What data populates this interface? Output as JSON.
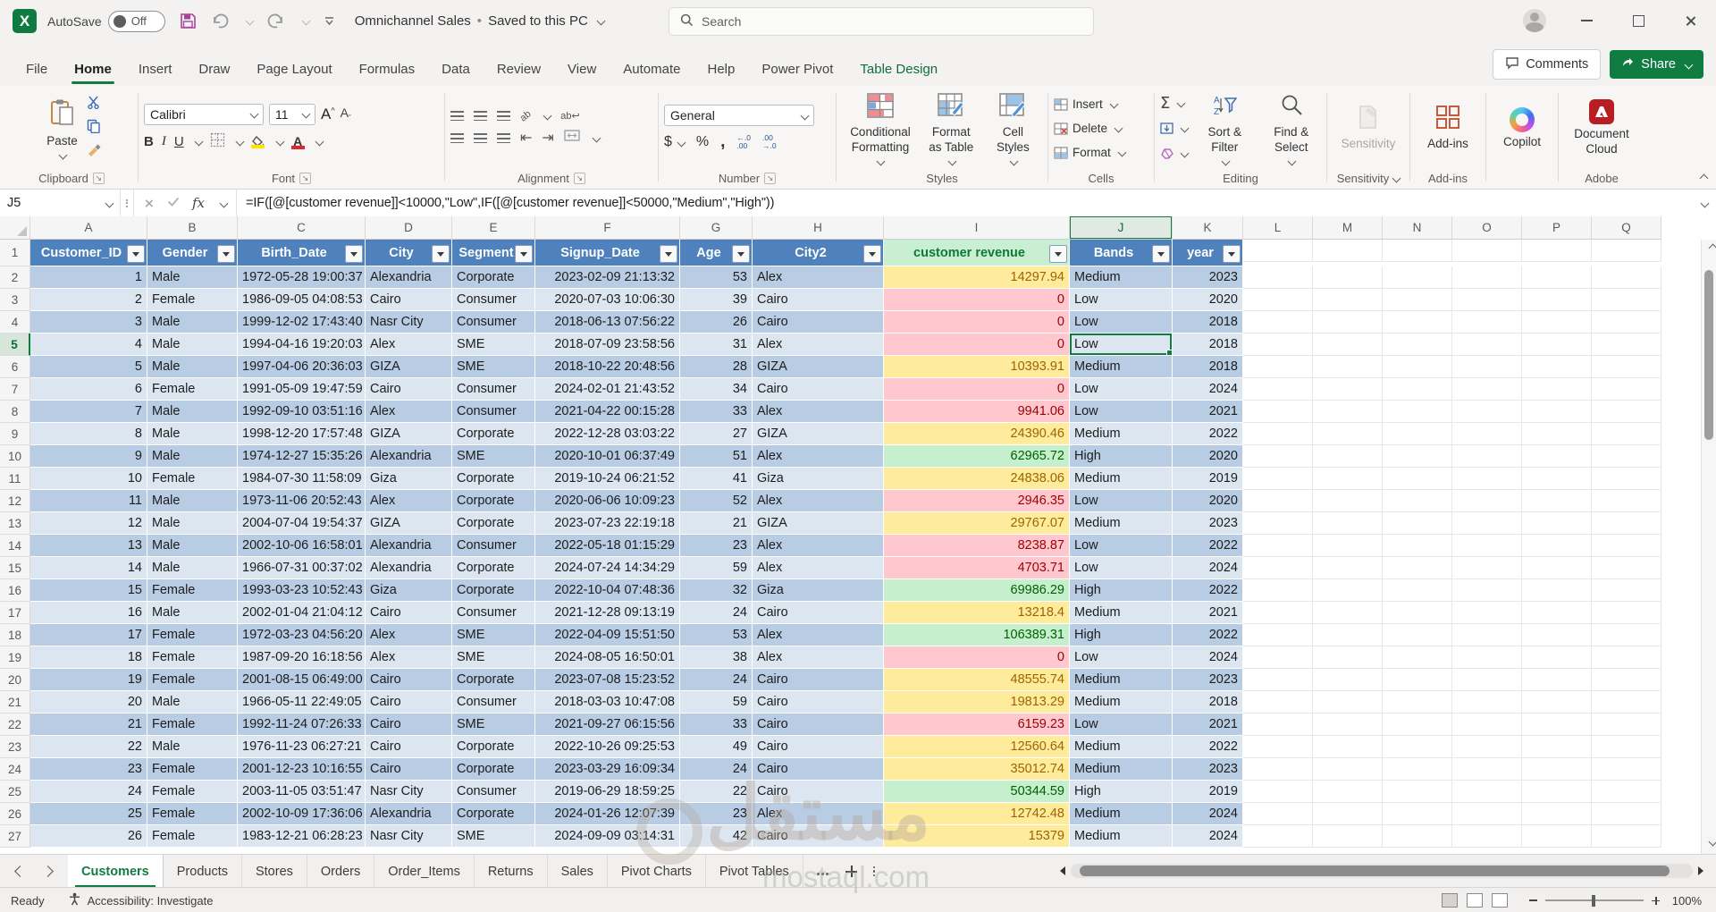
{
  "titlebar": {
    "autosave_label": "AutoSave",
    "autosave_state": "Off",
    "doc_title": "Omnichannel Sales",
    "separator": "•",
    "saved_status": "Saved to this PC",
    "search_placeholder": "Search"
  },
  "ribbon_tabs": {
    "items": [
      {
        "label": "File"
      },
      {
        "label": "Home",
        "active": true
      },
      {
        "label": "Insert"
      },
      {
        "label": "Draw"
      },
      {
        "label": "Page Layout"
      },
      {
        "label": "Formulas"
      },
      {
        "label": "Data"
      },
      {
        "label": "Review"
      },
      {
        "label": "View"
      },
      {
        "label": "Automate"
      },
      {
        "label": "Help"
      },
      {
        "label": "Power Pivot"
      },
      {
        "label": "Table Design",
        "contextual": true
      }
    ],
    "comments_label": "Comments",
    "share_label": "Share"
  },
  "ribbon": {
    "clipboard": {
      "paste": "Paste",
      "label": "Clipboard"
    },
    "font": {
      "name": "Calibri",
      "size": "11",
      "bold": "B",
      "italic": "I",
      "underline": "U",
      "a_big": "A",
      "a_color": "A",
      "label": "Font"
    },
    "alignment": {
      "wrap": "ab",
      "label": "Alignment"
    },
    "number": {
      "format": "General",
      "dollar": "$",
      "percent": "%",
      "comma": ",",
      "dec1a": "←.0",
      "dec1b": ".00",
      "dec2a": ".00",
      "dec2b": "→.0",
      "label": "Number"
    },
    "styles": {
      "cf": "Conditional Formatting",
      "fat": "Format as Table",
      "cs": "Cell Styles",
      "label": "Styles"
    },
    "cells": {
      "insert": "Insert",
      "delete": "Delete",
      "format": "Format",
      "label": "Cells"
    },
    "editing": {
      "sum": "Σ",
      "sort": "Sort & Filter",
      "find": "Find & Select",
      "label": "Editing"
    },
    "sensitivity": {
      "button": "Sensitivity",
      "label": "Sensitivity"
    },
    "addins": {
      "button": "Add-ins",
      "label": "Add-ins"
    },
    "copilot": {
      "button": "Copilot"
    },
    "adobe": {
      "button": "Document Cloud",
      "label": "Adobe"
    }
  },
  "formula_bar": {
    "name_box": "J5",
    "fx": "fx",
    "formula": "=IF([@[customer revenue]]<10000,\"Low\",IF([@[customer revenue]]<50000,\"Medium\",\"High\"))"
  },
  "grid": {
    "col_letters": [
      "A",
      "B",
      "C",
      "D",
      "E",
      "F",
      "G",
      "H",
      "I",
      "J",
      "K",
      "L",
      "M",
      "N",
      "O",
      "P",
      "Q"
    ],
    "headers": [
      "Customer_ID",
      "Gender",
      "Birth_Date",
      "City",
      "Segment",
      "Signup_Date",
      "Age",
      "City2",
      "customer revenue",
      "Bands",
      "year"
    ],
    "selected": {
      "col": "J",
      "row": 5,
      "cell": "J5",
      "value": "Low"
    },
    "colors": {
      "header_bg": "#4f81bd",
      "revenue_header_bg": "#c9efd3",
      "band_dark": "#b8cce4",
      "band_light": "#dce6f1",
      "rev_low_bg": "#ffc7ce",
      "rev_low_text": "#9c0006",
      "rev_med_bg": "#ffeb9c",
      "rev_med_text": "#9c6500",
      "rev_high_bg": "#c6efce",
      "rev_high_text": "#006100",
      "selection": "#107c41"
    },
    "rows": [
      [
        1,
        "Male",
        "1972-05-28 19:00:37",
        "Alexandria",
        "Corporate",
        "2023-02-09 21:13:32",
        53,
        "Alex",
        14297.94,
        "Medium",
        2023
      ],
      [
        2,
        "Female",
        "1986-09-05 04:08:53",
        "Cairo",
        "Consumer",
        "2020-07-03 10:06:30",
        39,
        "Cairo",
        0,
        "Low",
        2020
      ],
      [
        3,
        "Male",
        "1999-12-02 17:43:40",
        "Nasr City",
        "Consumer",
        "2018-06-13 07:56:22",
        26,
        "Cairo",
        0,
        "Low",
        2018
      ],
      [
        4,
        "Male",
        "1994-04-16 19:20:03",
        "Alex",
        "SME",
        "2018-07-09 23:58:56",
        31,
        "Alex",
        0,
        "Low",
        2018
      ],
      [
        5,
        "Male",
        "1997-04-06 20:36:03",
        "GIZA",
        "SME",
        "2018-10-22 20:48:56",
        28,
        "GIZA",
        10393.91,
        "Medium",
        2018
      ],
      [
        6,
        "Female",
        "1991-05-09 19:47:59",
        "Cairo",
        "Consumer",
        "2024-02-01 21:43:52",
        34,
        "Cairo",
        0,
        "Low",
        2024
      ],
      [
        7,
        "Male",
        "1992-09-10 03:51:16",
        "Alex",
        "Consumer",
        "2021-04-22 00:15:28",
        33,
        "Alex",
        9941.06,
        "Low",
        2021
      ],
      [
        8,
        "Male",
        "1998-12-20 17:57:48",
        "GIZA",
        "Corporate",
        "2022-12-28 03:03:22",
        27,
        "GIZA",
        24390.46,
        "Medium",
        2022
      ],
      [
        9,
        "Male",
        "1974-12-27 15:35:26",
        "Alexandria",
        "SME",
        "2020-10-01 06:37:49",
        51,
        "Alex",
        62965.72,
        "High",
        2020
      ],
      [
        10,
        "Female",
        "1984-07-30 11:58:09",
        "Giza",
        "Corporate",
        "2019-10-24 06:21:52",
        41,
        "Giza",
        24838.06,
        "Medium",
        2019
      ],
      [
        11,
        "Male",
        "1973-11-06 20:52:43",
        "Alex",
        "Corporate",
        "2020-06-06 10:09:23",
        52,
        "Alex",
        2946.35,
        "Low",
        2020
      ],
      [
        12,
        "Male",
        "2004-07-04 19:54:37",
        "GIZA",
        "Corporate",
        "2023-07-23 22:19:18",
        21,
        "GIZA",
        29767.07,
        "Medium",
        2023
      ],
      [
        13,
        "Male",
        "2002-10-06 16:58:01",
        "Alexandria",
        "Consumer",
        "2022-05-18 01:15:29",
        23,
        "Alex",
        8238.87,
        "Low",
        2022
      ],
      [
        14,
        "Male",
        "1966-07-31 00:37:02",
        "Alexandria",
        "Corporate",
        "2024-07-24 14:34:29",
        59,
        "Alex",
        4703.71,
        "Low",
        2024
      ],
      [
        15,
        "Female",
        "1993-03-23 10:52:43",
        "Giza",
        "Corporate",
        "2022-10-04 07:48:36",
        32,
        "Giza",
        69986.29,
        "High",
        2022
      ],
      [
        16,
        "Male",
        "2002-01-04 21:04:12",
        "Cairo",
        "Consumer",
        "2021-12-28 09:13:19",
        24,
        "Cairo",
        13218.4,
        "Medium",
        2021
      ],
      [
        17,
        "Female",
        "1972-03-23 04:56:20",
        "Alex",
        "SME",
        "2022-04-09 15:51:50",
        53,
        "Alex",
        106389.31,
        "High",
        2022
      ],
      [
        18,
        "Female",
        "1987-09-20 16:18:56",
        "Alex",
        "SME",
        "2024-08-05 16:50:01",
        38,
        "Alex",
        0,
        "Low",
        2024
      ],
      [
        19,
        "Female",
        "2001-08-15 06:49:00",
        "Cairo",
        "Corporate",
        "2023-07-08 15:23:52",
        24,
        "Cairo",
        48555.74,
        "Medium",
        2023
      ],
      [
        20,
        "Male",
        "1966-05-11 22:49:05",
        "Cairo",
        "Consumer",
        "2018-03-03 10:47:08",
        59,
        "Cairo",
        19813.29,
        "Medium",
        2018
      ],
      [
        21,
        "Female",
        "1992-11-24 07:26:33",
        "Cairo",
        "SME",
        "2021-09-27 06:15:56",
        33,
        "Cairo",
        6159.23,
        "Low",
        2021
      ],
      [
        22,
        "Male",
        "1976-11-23 06:27:21",
        "Cairo",
        "Corporate",
        "2022-10-26 09:25:53",
        49,
        "Cairo",
        12560.64,
        "Medium",
        2022
      ],
      [
        23,
        "Female",
        "2001-12-23 10:16:55",
        "Cairo",
        "Corporate",
        "2023-03-29 16:09:34",
        24,
        "Cairo",
        35012.74,
        "Medium",
        2023
      ],
      [
        24,
        "Female",
        "2003-11-05 03:51:47",
        "Nasr City",
        "Consumer",
        "2019-06-29 18:59:25",
        22,
        "Cairo",
        50344.59,
        "High",
        2019
      ],
      [
        25,
        "Female",
        "2002-10-09 17:36:06",
        "Alexandria",
        "Corporate",
        "2024-01-26 12:07:39",
        23,
        "Alex",
        12742.48,
        "Medium",
        2024
      ],
      [
        26,
        "Female",
        "1983-12-21 06:28:23",
        "Nasr City",
        "SME",
        "2024-09-09 03:14:31",
        42,
        "Cairo",
        15379,
        "Medium",
        2024
      ]
    ]
  },
  "sheet_tabs": {
    "tabs": [
      "Customers",
      "Products",
      "Stores",
      "Orders",
      "Order_Items",
      "Returns",
      "Sales",
      "Pivot Charts",
      "Pivot Tables"
    ],
    "active": "Customers"
  },
  "status_bar": {
    "ready": "Ready",
    "accessibility": "Accessibility: Investigate",
    "zoom": "100%"
  },
  "watermark": {
    "arabic": "مستقل",
    "domain": "mostaql.com"
  }
}
